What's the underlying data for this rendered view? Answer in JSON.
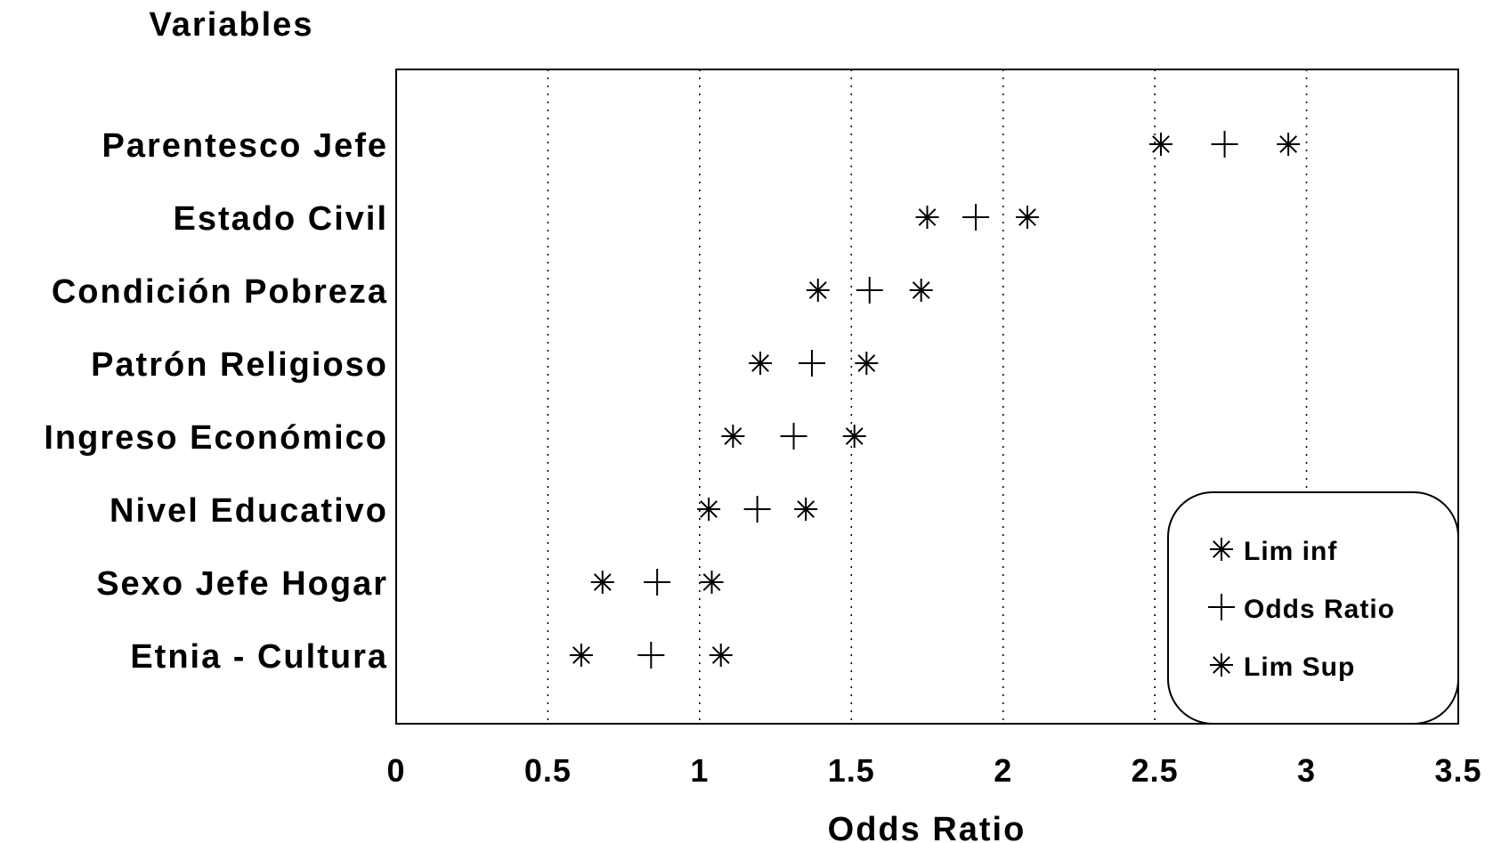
{
  "chart_data": {
    "type": "scatter",
    "title": "",
    "ylabel": "Variables",
    "xlabel": "Odds Ratio",
    "xlim": [
      0,
      3.5
    ],
    "xticks": [
      0,
      0.5,
      1,
      1.5,
      2,
      2.5,
      3,
      3.5
    ],
    "xtick_labels": [
      "0",
      "0.5",
      "1",
      "1.5",
      "2",
      "2.5",
      "3",
      "3.5"
    ],
    "grid": "vertical dotted",
    "legend_position": "bottom-right",
    "categories": [
      "Parentesco  Jefe",
      "Estado Civil",
      "Condición Pobreza",
      "Patrón Religioso",
      "Ingreso Económico",
      "Nivel Educativo",
      "Sexo Jefe Hogar",
      "Etnia - Cultura"
    ],
    "series": [
      {
        "name": "Lim inf",
        "marker": "asterisk",
        "values": [
          2.52,
          1.75,
          1.39,
          1.2,
          1.11,
          1.03,
          0.68,
          0.61
        ]
      },
      {
        "name": "Odds Ratio",
        "marker": "plus",
        "values": [
          2.73,
          1.91,
          1.56,
          1.37,
          1.31,
          1.19,
          0.86,
          0.84
        ]
      },
      {
        "name": "Lim Sup",
        "marker": "asterisk",
        "values": [
          2.94,
          2.08,
          1.73,
          1.55,
          1.51,
          1.35,
          1.04,
          1.07
        ]
      }
    ]
  }
}
